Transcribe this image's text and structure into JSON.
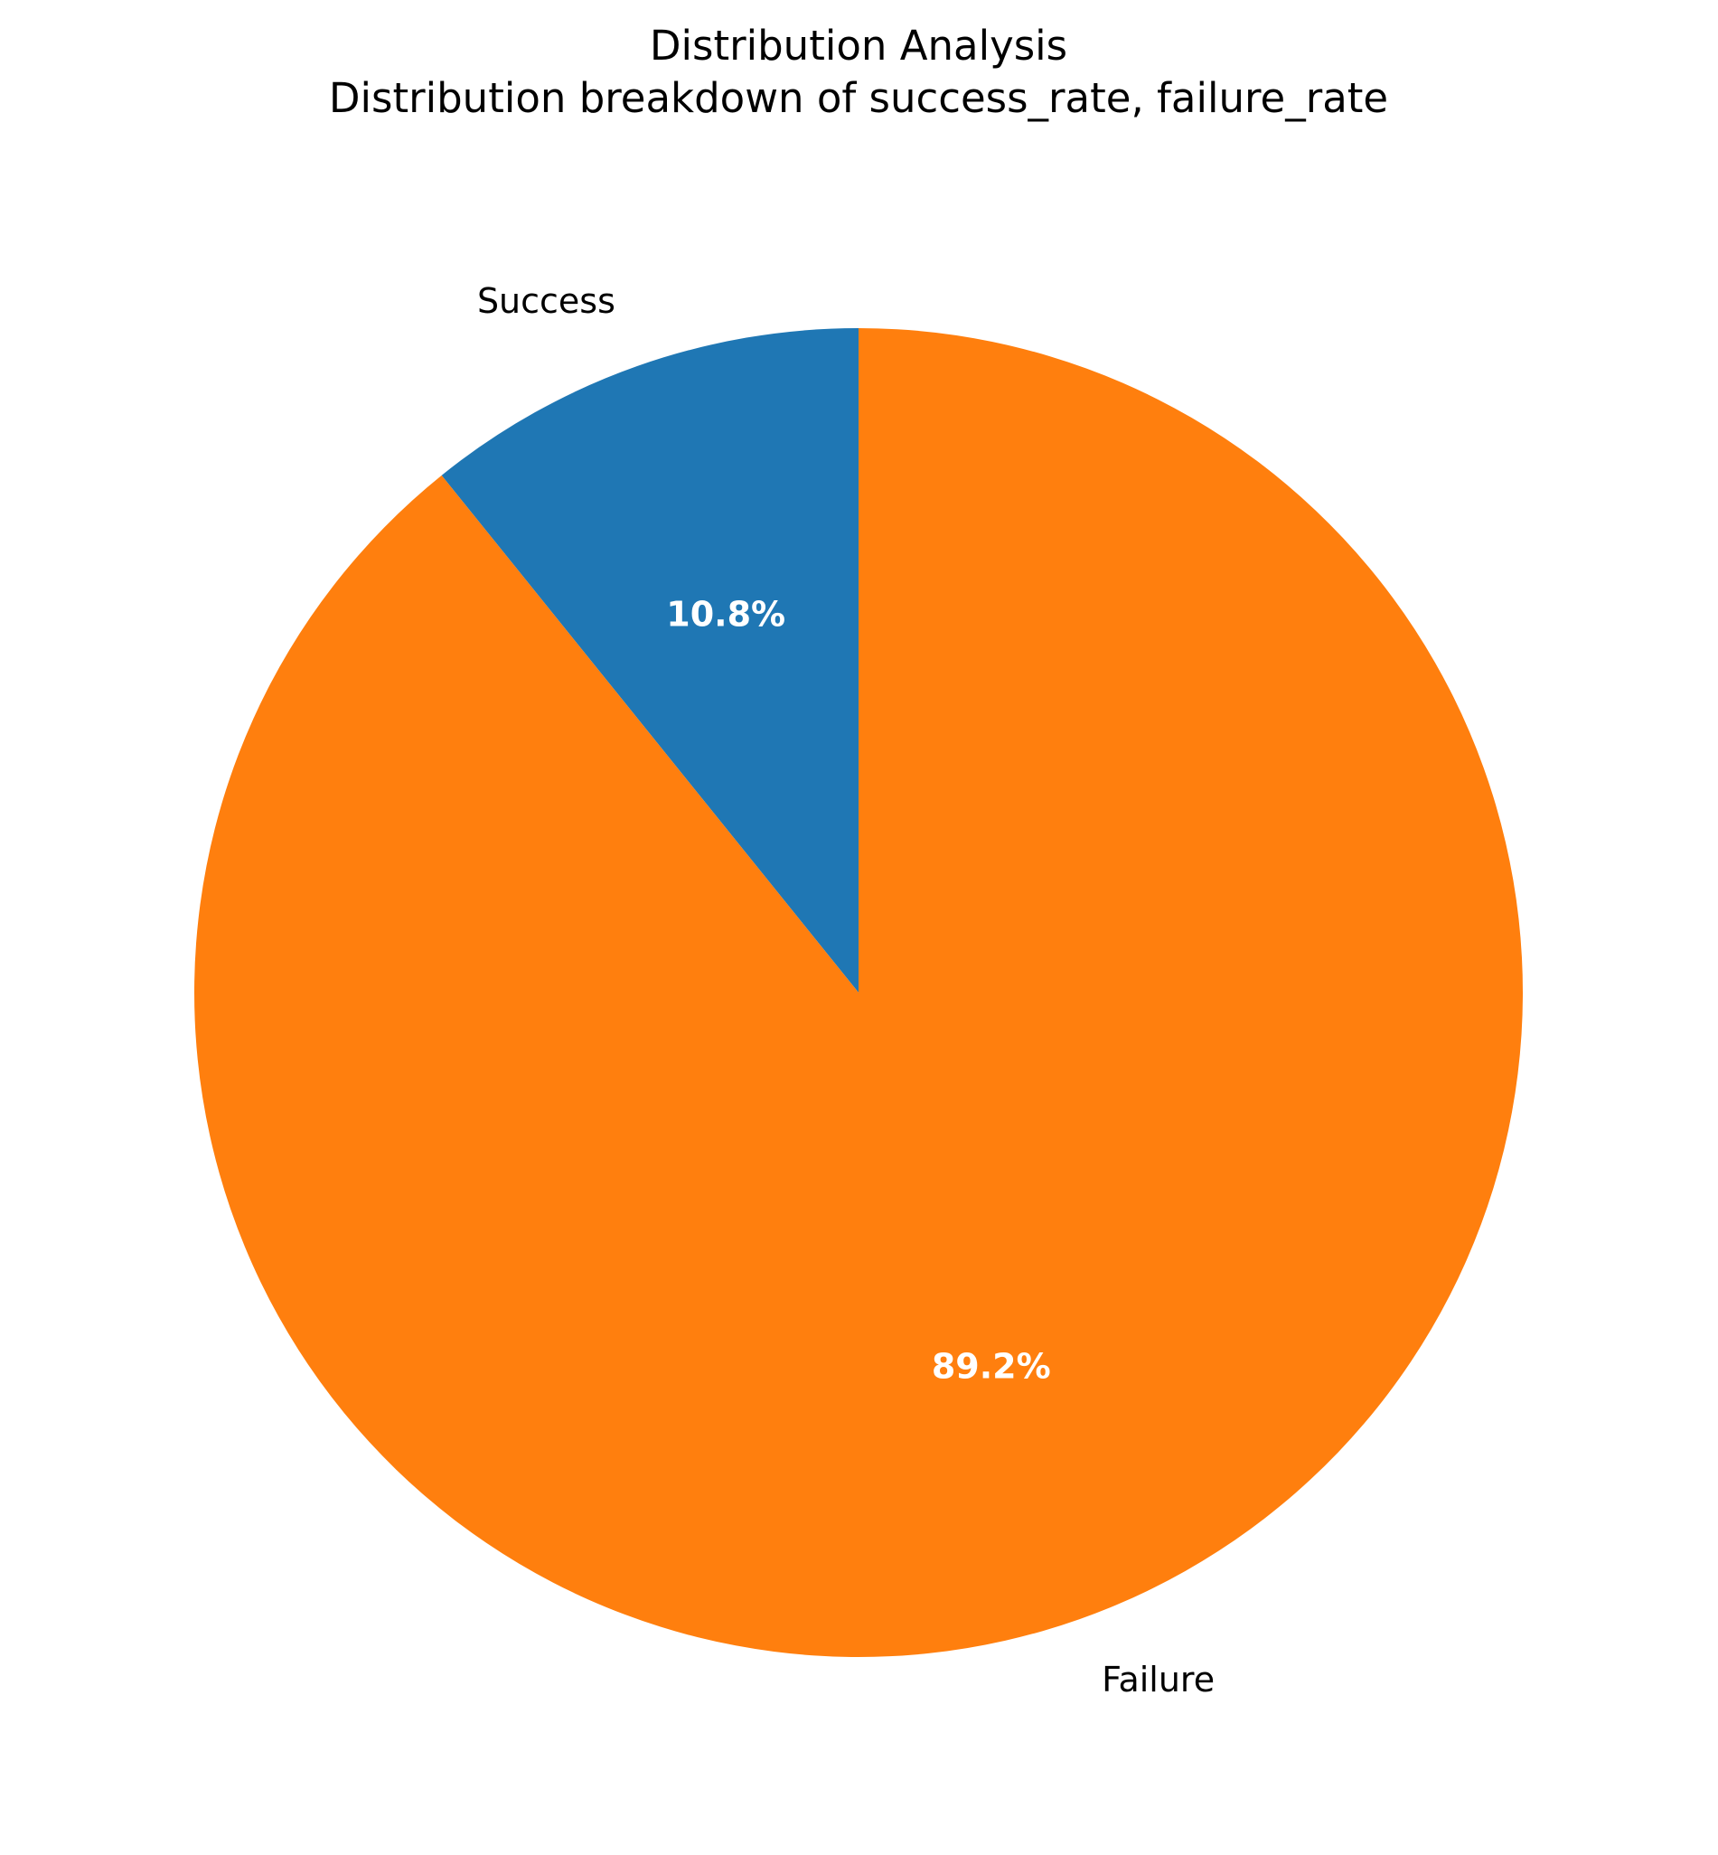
{
  "chart_data": {
    "type": "pie",
    "title": "Distribution Analysis",
    "subtitle": "Distribution breakdown of success_rate, failure_rate",
    "categories": [
      "Success",
      "Failure"
    ],
    "values": [
      10.8,
      89.2
    ],
    "percent_labels": [
      "10.8%",
      "89.2%"
    ],
    "colors": [
      "#1f77b4",
      "#ff7f0e"
    ],
    "start_angle_deg": 90,
    "direction": "counterclockwise",
    "legend": "none"
  }
}
